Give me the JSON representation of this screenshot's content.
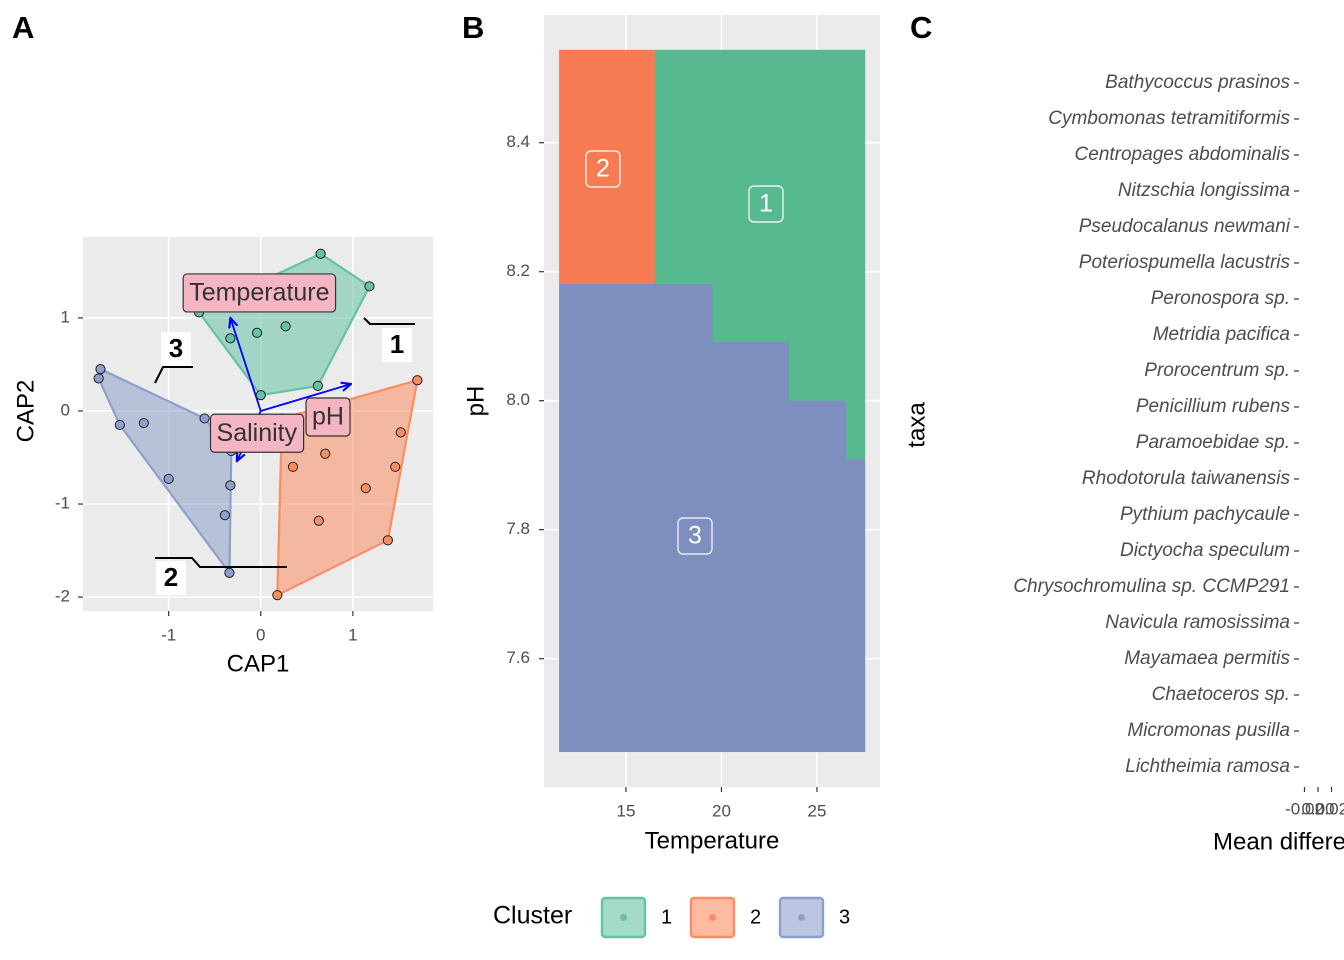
{
  "chart_data": [
    {
      "type": "scatter",
      "tag": "A",
      "xlabel": "CAP1",
      "ylabel": "CAP2",
      "xlim": [
        -1.93,
        1.87
      ],
      "ylim": [
        -2.15,
        1.87
      ],
      "xticks": [
        -1,
        0,
        1
      ],
      "yticks": [
        -2,
        -1,
        0,
        1
      ],
      "grid": true,
      "hulls": true,
      "series": [
        {
          "name": "1",
          "color": "#66c2a5",
          "x": [
            0.65,
            1.18,
            0,
            -0.67,
            -0.33,
            -0.04,
            0.27,
            0.62,
            0
          ],
          "y": [
            1.69,
            1.34,
            1.39,
            1.06,
            0.78,
            0.84,
            0.91,
            0.27,
            0.17
          ]
        },
        {
          "name": "2",
          "color": "#fc8d62",
          "x": [
            1.7,
            1.52,
            1.46,
            1.14,
            0.7,
            0.35,
            0.63,
            1.38,
            0.18,
            0.23
          ],
          "y": [
            0.33,
            -0.23,
            -0.6,
            -0.83,
            -0.46,
            -0.6,
            -1.18,
            -1.39,
            -1.98,
            -0.08
          ]
        },
        {
          "name": "3",
          "color": "#8da0cb",
          "x": [
            -1.74,
            -1.76,
            -1.53,
            -1.27,
            -1.0,
            -0.61,
            -0.32,
            -0.33,
            -0.39,
            -0.34
          ],
          "y": [
            0.45,
            0.35,
            -0.15,
            -0.13,
            -0.73,
            -0.08,
            -0.43,
            -0.8,
            -1.12,
            -1.74
          ]
        }
      ],
      "arrows": {
        "color": "#0000ff",
        "names": [
          "Temperature",
          "pH",
          "Salinity"
        ],
        "x": [
          -0.33,
          0.98,
          -0.26
        ],
        "y": [
          1.0,
          0.29,
          -0.54
        ]
      }
    },
    {
      "type": "tile",
      "tag": "B",
      "xlabel": "Temperature",
      "ylabel": "pH",
      "xlim": [
        10.71,
        28.3
      ],
      "ylim": [
        7.401,
        8.598
      ],
      "xticks": [
        15,
        20,
        25
      ],
      "yticks": [
        7.6,
        7.8,
        {
          "value": 8,
          "label": "8.0"
        },
        8.2,
        8.4
      ],
      "grid": true,
      "series": [
        {
          "name": "1",
          "color": "#57b98f",
          "rects": [
            {
              "xmin": 16.5,
              "xmax": 19.5,
              "ymin": 8.181,
              "ymax": 8.544
            },
            {
              "xmin": 19.5,
              "xmax": 23.5,
              "ymin": 8.091,
              "ymax": 8.544
            },
            {
              "xmin": 23.5,
              "xmax": 26.5,
              "ymin": 8.0,
              "ymax": 8.544
            },
            {
              "xmin": 26.5,
              "xmax": 27.5,
              "ymin": 7.909,
              "ymax": 8.544
            }
          ]
        },
        {
          "name": "2",
          "color": "#f77b52",
          "rects": [
            {
              "xmin": 11.5,
              "xmax": 16.5,
              "ymin": 8.181,
              "ymax": 8.544
            }
          ]
        },
        {
          "name": "3",
          "color": "#7d8ebf",
          "rects": [
            {
              "xmin": 11.5,
              "xmax": 19.5,
              "ymin": 7.456,
              "ymax": 8.181
            },
            {
              "xmin": 19.5,
              "xmax": 23.5,
              "ymin": 7.456,
              "ymax": 8.091
            },
            {
              "xmin": 23.5,
              "xmax": 26.5,
              "ymin": 7.456,
              "ymax": 8.0
            },
            {
              "xmin": 26.5,
              "xmax": 27.5,
              "ymin": 7.456,
              "ymax": 7.909
            }
          ]
        }
      ]
    },
    {
      "type": "point",
      "tag": "C",
      "xlabel": "Mean difference",
      "ylabel": "taxa",
      "xlim": [
        -0.0296,
        0.0385
      ],
      "xticks": [
        -0.02,
        {
          "value": 0,
          "label": "0.00"
        },
        0.02
      ],
      "grid": false,
      "categories": [
        "Bathycoccus prasinos",
        "Cymbomonas tetramitiformis",
        "Centropages abdominalis",
        "Nitzschia longissima",
        "Pseudocalanus newmani",
        "Poteriospumella lacustris",
        "Peronospora sp.",
        "Metridia pacifica",
        "Prorocentrum sp.",
        "Penicillium rubens",
        "Paramoebidae sp.",
        "Rhodotorula taiwanensis",
        "Pythium pachycaule",
        "Dictyocha speculum",
        "Chrysochromulina sp. CCMP291",
        "Navicula ramosissima",
        "Mayamaea permitis",
        "Chaetoceros sp.",
        "Micromonas pusilla",
        "Lichtheimia ramosa"
      ]
    }
  ],
  "legend": {
    "title": "Cluster",
    "entries": [
      {
        "name": "1",
        "color": "#66c2a5"
      },
      {
        "name": "2",
        "color": "#fc8d62"
      },
      {
        "name": "3",
        "color": "#8da0cb"
      }
    ]
  }
}
